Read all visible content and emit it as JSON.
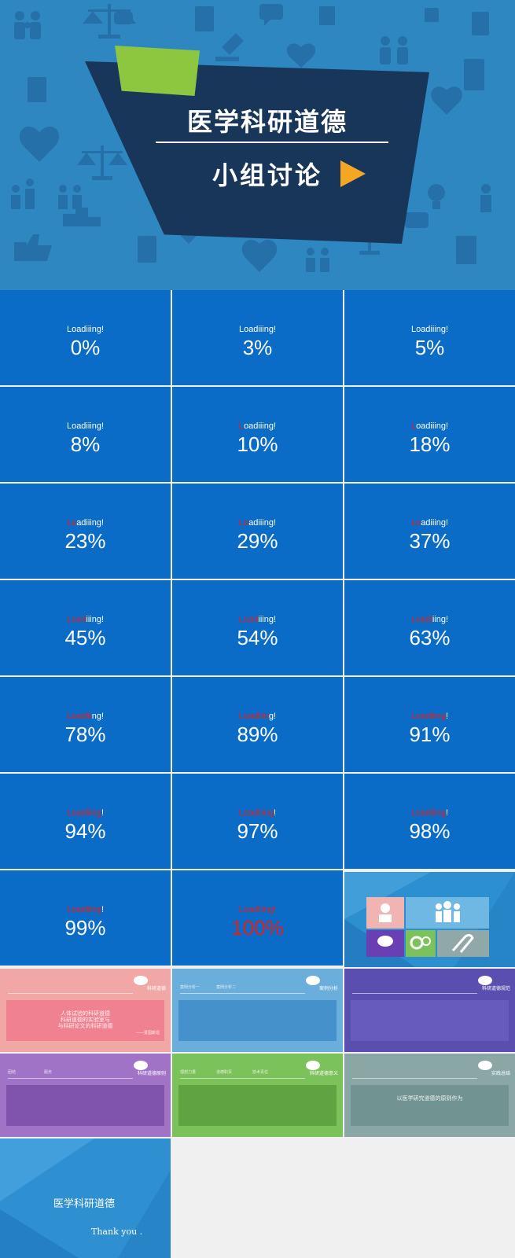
{
  "title_slide": {
    "title": "医学科研道德",
    "subtitle": "小组讨论",
    "colors": {
      "background": "#2f87c2",
      "card": "#17365a",
      "flag": "#8dc63f",
      "arrow": "#f5a623"
    },
    "icons": [
      "family-icon",
      "scales-icon",
      "document-icon",
      "pencil-icon",
      "heart-icon",
      "thumbs-up-icon",
      "chat-icon",
      "lightbulb-icon",
      "podium-icon",
      "people-icon",
      "clipboard-icon"
    ]
  },
  "loading_tiles": [
    {
      "red": "",
      "rest": "Loadiiing!",
      "percent": "0%"
    },
    {
      "red": "",
      "rest": "Loadiiing!",
      "percent": "3%"
    },
    {
      "red": "",
      "rest": "Loadiiing!",
      "percent": "5%"
    },
    {
      "red": "",
      "rest": "Loadiiing!",
      "percent": "8%"
    },
    {
      "red": "L",
      "rest": "oadiiing!",
      "percent": "10%"
    },
    {
      "red": "L",
      "rest": "oadiiing!",
      "percent": "18%"
    },
    {
      "red": "Lo",
      "rest": "adiiing!",
      "percent": "23%"
    },
    {
      "red": "Lo",
      "rest": "adiiing!",
      "percent": "29%"
    },
    {
      "red": "Lo",
      "rest": "adiiing!",
      "percent": "37%"
    },
    {
      "red": "Load",
      "rest": "iiing!",
      "percent": "45%"
    },
    {
      "red": "Load",
      "rest": "iiing!",
      "percent": "54%"
    },
    {
      "red": "Loadi",
      "rest": "iing!",
      "percent": "63%"
    },
    {
      "red": "Loadiii",
      "rest": "ng!",
      "percent": "78%"
    },
    {
      "red": "Loadiiin",
      "rest": "g!",
      "percent": "89%"
    },
    {
      "red": "Loadiiing",
      "rest": "!",
      "percent": "91%"
    },
    {
      "red": "Loadiiing",
      "rest": "!",
      "percent": "94%"
    },
    {
      "red": "Loadiiing",
      "rest": "!",
      "percent": "97%"
    },
    {
      "red": "Loadiiing",
      "rest": "!",
      "percent": "98%"
    },
    {
      "red": "Loadiiing",
      "rest": "!",
      "percent": "99%"
    },
    {
      "red": "Loadiiing!",
      "rest": "",
      "percent": "100%",
      "percent_red": true
    }
  ],
  "content_slides": [
    {
      "tag": "科研道德",
      "nav": [
        "",
        "",
        ""
      ],
      "lines": [
        "人体试验的科研道德",
        "科研道德的实验室与",
        "与科研论文的科研道德"
      ],
      "sign": "——爱因斯坦",
      "bg": "#f2a7a7",
      "panel": "#f07a8c"
    },
    {
      "tag": "案例分析",
      "nav": [
        "案例分析一",
        "案例分析二"
      ],
      "lines": [],
      "sign": "",
      "bg": "#6aaedb",
      "panel": "#3d8cc8"
    },
    {
      "tag": "科研道德规范",
      "nav": [
        "",
        ""
      ],
      "lines": [],
      "sign": "",
      "bg": "#5a4fb0",
      "panel": "#6a5ec0"
    },
    {
      "tag": "科研道德原则",
      "nav": [
        "团结",
        "服务"
      ],
      "lines": [],
      "sign": "",
      "bg": "#a073c6",
      "panel": "#7a4da8"
    },
    {
      "tag": "科研道德意义",
      "nav": [
        "理想力量",
        "道德职责",
        "技术责任"
      ],
      "lines": [],
      "sign": "",
      "bg": "#7cc25a",
      "panel": "#5c9e3f"
    },
    {
      "tag": "实践总结",
      "nav": [
        "",
        ""
      ],
      "lines": [
        "以医学研究道德的原则作为"
      ],
      "sign": "",
      "bg": "#8aa7a6",
      "panel": "#6c8f8d"
    }
  ],
  "thanks_slide": {
    "title": "医学科研道德",
    "subtitle": "Thank  you ."
  }
}
